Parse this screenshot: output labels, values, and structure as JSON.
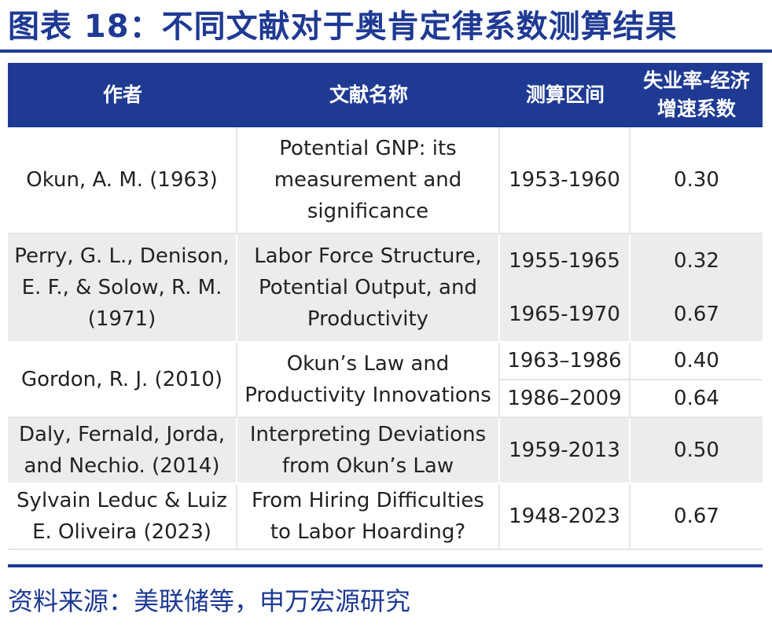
{
  "title": "图表 18：不同文献对于奥肯定律系数测算结果",
  "headers": [
    "作者",
    "文献名称",
    "测算区间",
    "失业率-经济增速系数"
  ],
  "rows": [
    {
      "author": "Okun, A. M. (1963)",
      "paper": "Potential GNP: its measurement and significance",
      "periods": [
        {
          "range": "1953-1960",
          "coef": "0.30"
        }
      ]
    },
    {
      "author": "Perry, G. L., Denison, E. F., & Solow, R. M. (1971)",
      "paper": "Labor Force Structure, Potential Output, and Productivity",
      "periods": [
        {
          "range": "1955-1965",
          "coef": "0.32"
        },
        {
          "range": "1965-1970",
          "coef": "0.67"
        }
      ]
    },
    {
      "author": "Gordon, R. J. (2010)",
      "paper": "Okun’s Law and Productivity Innovations",
      "periods": [
        {
          "range": "1963–1986",
          "coef": "0.40"
        },
        {
          "range": "1986–2009",
          "coef": "0.64"
        }
      ]
    },
    {
      "author": "Daly, Fernald, Jorda, and Nechio. (2014)",
      "paper": "Interpreting Deviations from Okun’s Law",
      "periods": [
        {
          "range": "1959-2013",
          "coef": "0.50"
        }
      ]
    },
    {
      "author": "Sylvain Leduc & Luiz E. Oliveira (2023)",
      "paper": "From Hiring Difficulties to Labor Hoarding?",
      "periods": [
        {
          "range": "1948-2023",
          "coef": "0.67"
        }
      ]
    }
  ],
  "source": "资料来源：美联储等，申万宏源研究"
}
